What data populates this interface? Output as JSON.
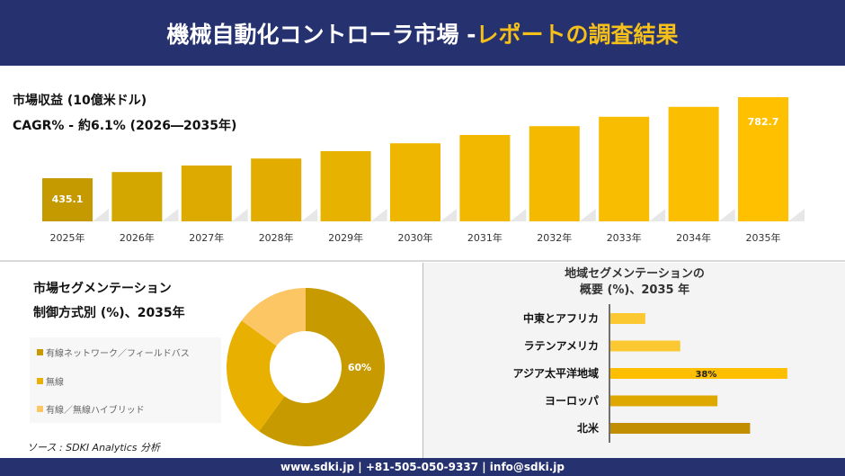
{
  "header": {
    "title_main": "機械自動化コントローラ市場 -",
    "title_accent": "レポートの調査結果"
  },
  "revenue": {
    "title": "市場収益 (10億米ドル)",
    "cagr": "CAGR% - 約6.1% (2026―2035年)"
  },
  "chart_data": [
    {
      "type": "bar",
      "categories": [
        "2025年",
        "2026年",
        "2027年",
        "2028年",
        "2029年",
        "2030年",
        "2031年",
        "2032年",
        "2033年",
        "2034年",
        "2035年"
      ],
      "values": [
        435.1,
        461.6,
        489.8,
        519.7,
        551.4,
        585.0,
        620.7,
        658.5,
        698.7,
        741.3,
        782.7
      ],
      "data_labels": [
        "435.1",
        "",
        "",
        "",
        "",
        "",
        "",
        "",
        "",
        "",
        "782.7"
      ],
      "colors": [
        "#c49a00",
        "#d4a600",
        "#dcaa00",
        "#e2ad00",
        "#e8b200",
        "#efb600",
        "#f2b800",
        "#f5ba00",
        "#f8bc00",
        "#fbbe00",
        "#ffc000"
      ],
      "grid": false
    },
    {
      "type": "pie",
      "title": "市場セグメンテーション",
      "subtitle": "制御方式別 (%)、2035年",
      "categories": [
        "有線ネットワーク／フィールドバス",
        "無線",
        "有線／無線ハイブリッド"
      ],
      "values": [
        60,
        25,
        15
      ],
      "data_labels": [
        "60%",
        "",
        ""
      ],
      "colors": [
        "#c79a00",
        "#e8b000",
        "#fcc665"
      ],
      "donut": true,
      "legend": "left"
    },
    {
      "type": "bar",
      "orientation": "horizontal",
      "title": "地域セグメンテーションの",
      "subtitle": "概要 (%)、2035 年",
      "categories": [
        "中東とアフリカ",
        "ラテンアメリカ",
        "アジア太平洋地域",
        "ヨーロッパ",
        "北米"
      ],
      "values": [
        7.5,
        15,
        38,
        23,
        30
      ],
      "data_labels": [
        "",
        "",
        "38%",
        "",
        ""
      ],
      "colors": [
        "#fcc832",
        "#fcc832",
        "#fdbf00",
        "#dea800",
        "#c08e00"
      ]
    }
  ],
  "source": "ソース : SDKI Analytics 分析",
  "footer": "www.sdki.jp | +81-505-050-9337 | info@sdki.jp"
}
